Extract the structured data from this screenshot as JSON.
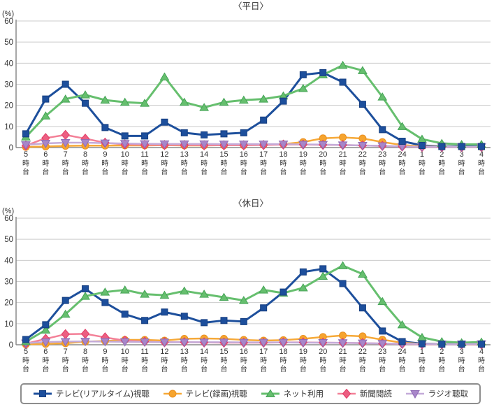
{
  "unit_label": "(%)",
  "chart_data": {
    "type": "line",
    "ylabel": "(%)",
    "ylim": [
      0,
      60
    ],
    "y_ticks": [
      0,
      10,
      20,
      30,
      40,
      50,
      60
    ],
    "grid": true,
    "legend_position": "bottom",
    "x_hours": [
      "5",
      "6",
      "7",
      "8",
      "9",
      "10",
      "11",
      "12",
      "13",
      "14",
      "15",
      "16",
      "17",
      "18",
      "19",
      "20",
      "21",
      "22",
      "23",
      "24",
      "1",
      "2",
      "3",
      "4"
    ],
    "x_suffix_chars": [
      "時",
      "台"
    ],
    "categories": [
      "5時台",
      "6時台",
      "7時台",
      "8時台",
      "9時台",
      "10時台",
      "11時台",
      "12時台",
      "13時台",
      "14時台",
      "15時台",
      "16時台",
      "17時台",
      "18時台",
      "19時台",
      "20時台",
      "21時台",
      "22時台",
      "23時台",
      "24時台",
      "1時台",
      "2時台",
      "3時台",
      "4時台"
    ],
    "series_style": {
      "tv_realtime": {
        "name": "テレビ(リアルタイム)視聴",
        "marker": "square",
        "color": "#1d4f9c",
        "marker_fill": "#1d4f9c",
        "marker_stroke": "#163f80",
        "line_width": 3
      },
      "tv_recorded": {
        "name": "テレビ(録画)視聴",
        "marker": "circle",
        "color": "#f6a938",
        "marker_fill": "#f6a42e",
        "marker_stroke": "#ea8f1f",
        "line_width": 2.5
      },
      "net": {
        "name": "ネット利用",
        "marker": "triangle",
        "color": "#66bf6e",
        "marker_fill": "#66bf6e",
        "marker_stroke": "#44a356",
        "line_width": 3
      },
      "newspaper": {
        "name": "新聞閲読",
        "marker": "diamond",
        "color": "#f38097",
        "marker_fill": "#ec5f82",
        "marker_stroke": "#e33b66",
        "line_width": 2.5
      },
      "radio": {
        "name": "ラジオ聴取",
        "marker": "tridown",
        "color": "#c4abd9",
        "marker_fill": "#a886c9",
        "marker_stroke": "#8f6cb4",
        "line_width": 2.5
      }
    },
    "panels": [
      {
        "title": "〈平日〉",
        "series": [
          {
            "id": "tv_realtime",
            "values": [
              6.5,
              23,
              30,
              21,
              9.5,
              5.5,
              5.5,
              12,
              7,
              6,
              6.5,
              7,
              13,
              22,
              34.5,
              35.5,
              31,
              20.5,
              8.5,
              3,
              1,
              0.5,
              0.5,
              0.5
            ]
          },
          {
            "id": "tv_recorded",
            "values": [
              0.3,
              0.5,
              0.8,
              0.9,
              0.9,
              1,
              1,
              1.1,
              1,
              1,
              1.1,
              1.1,
              1.3,
              1.6,
              2.6,
              4.4,
              4.8,
              4.3,
              2.6,
              1.2,
              0.6,
              0.4,
              0.3,
              0.3
            ]
          },
          {
            "id": "net",
            "values": [
              5,
              15,
              23,
              25,
              22.5,
              21.5,
              21,
              33.5,
              21.5,
              19,
              21.5,
              22.5,
              23,
              24.5,
              28,
              34.5,
              39,
              36.5,
              24,
              10,
              4,
              2,
              1.5,
              1.5
            ]
          },
          {
            "id": "newspaper",
            "values": [
              0.9,
              4.5,
              6,
              4.2,
              2.3,
              1.5,
              1.3,
              1.2,
              1.2,
              1.1,
              1.1,
              1.1,
              1.2,
              1.4,
              1.4,
              1.3,
              1.2,
              1,
              0.8,
              0.5,
              0.3,
              0.2,
              0.2,
              0.3
            ]
          },
          {
            "id": "radio",
            "values": [
              1.3,
              2,
              2.3,
              2.3,
              2.1,
              1.9,
              1.8,
              1.7,
              1.7,
              1.7,
              1.6,
              1.6,
              1.6,
              1.6,
              1.5,
              1.4,
              1.2,
              1,
              0.8,
              0.5,
              0.4,
              0.3,
              0.3,
              0.4
            ]
          }
        ]
      },
      {
        "title": "〈休日〉",
        "series": [
          {
            "id": "tv_realtime",
            "values": [
              2.5,
              9.5,
              21,
              26.5,
              20,
              14.5,
              11.5,
              15.5,
              13.5,
              10.5,
              11.5,
              11,
              17.5,
              25,
              34.5,
              36,
              29,
              17.5,
              6.5,
              1.5,
              0.5,
              0.3,
              0.3,
              0.3
            ]
          },
          {
            "id": "tv_recorded",
            "values": [
              0.2,
              0.4,
              0.7,
              1.5,
              1.8,
              2.3,
              2.3,
              2,
              2.8,
              3,
              2.8,
              2.3,
              2,
              2.2,
              2.8,
              3.7,
              4.4,
              4,
              2.4,
              1,
              0.4,
              0.3,
              0.2,
              0.2
            ]
          },
          {
            "id": "net",
            "values": [
              1.5,
              7,
              14.5,
              23,
              25,
              26,
              24,
              23.5,
              25.5,
              24,
              22.5,
              21,
              26,
              24.5,
              27,
              32.5,
              37.5,
              33.5,
              20.5,
              9.5,
              3.5,
              1.5,
              1,
              1.3
            ]
          },
          {
            "id": "newspaper",
            "values": [
              0.5,
              2.8,
              5,
              5.2,
              3.5,
              2,
              1.5,
              1.2,
              1.2,
              1.1,
              1,
              1,
              1,
              1.1,
              1.1,
              1,
              0.9,
              0.8,
              0.6,
              0.4,
              0.2,
              0.2,
              0.2,
              0.2
            ]
          },
          {
            "id": "radio",
            "values": [
              0.8,
              1.3,
              1.5,
              1.6,
              1.5,
              1.4,
              1.3,
              1.2,
              1.2,
              1.2,
              1.2,
              1.1,
              1.1,
              1.1,
              1,
              1,
              0.9,
              0.8,
              0.6,
              0.5,
              0.4,
              0.3,
              0.3,
              0.4
            ]
          }
        ]
      }
    ]
  },
  "colors": {
    "grid": "#cccccc",
    "axis": "#8a8a8a",
    "tick": "#777777",
    "text": "#333333"
  }
}
